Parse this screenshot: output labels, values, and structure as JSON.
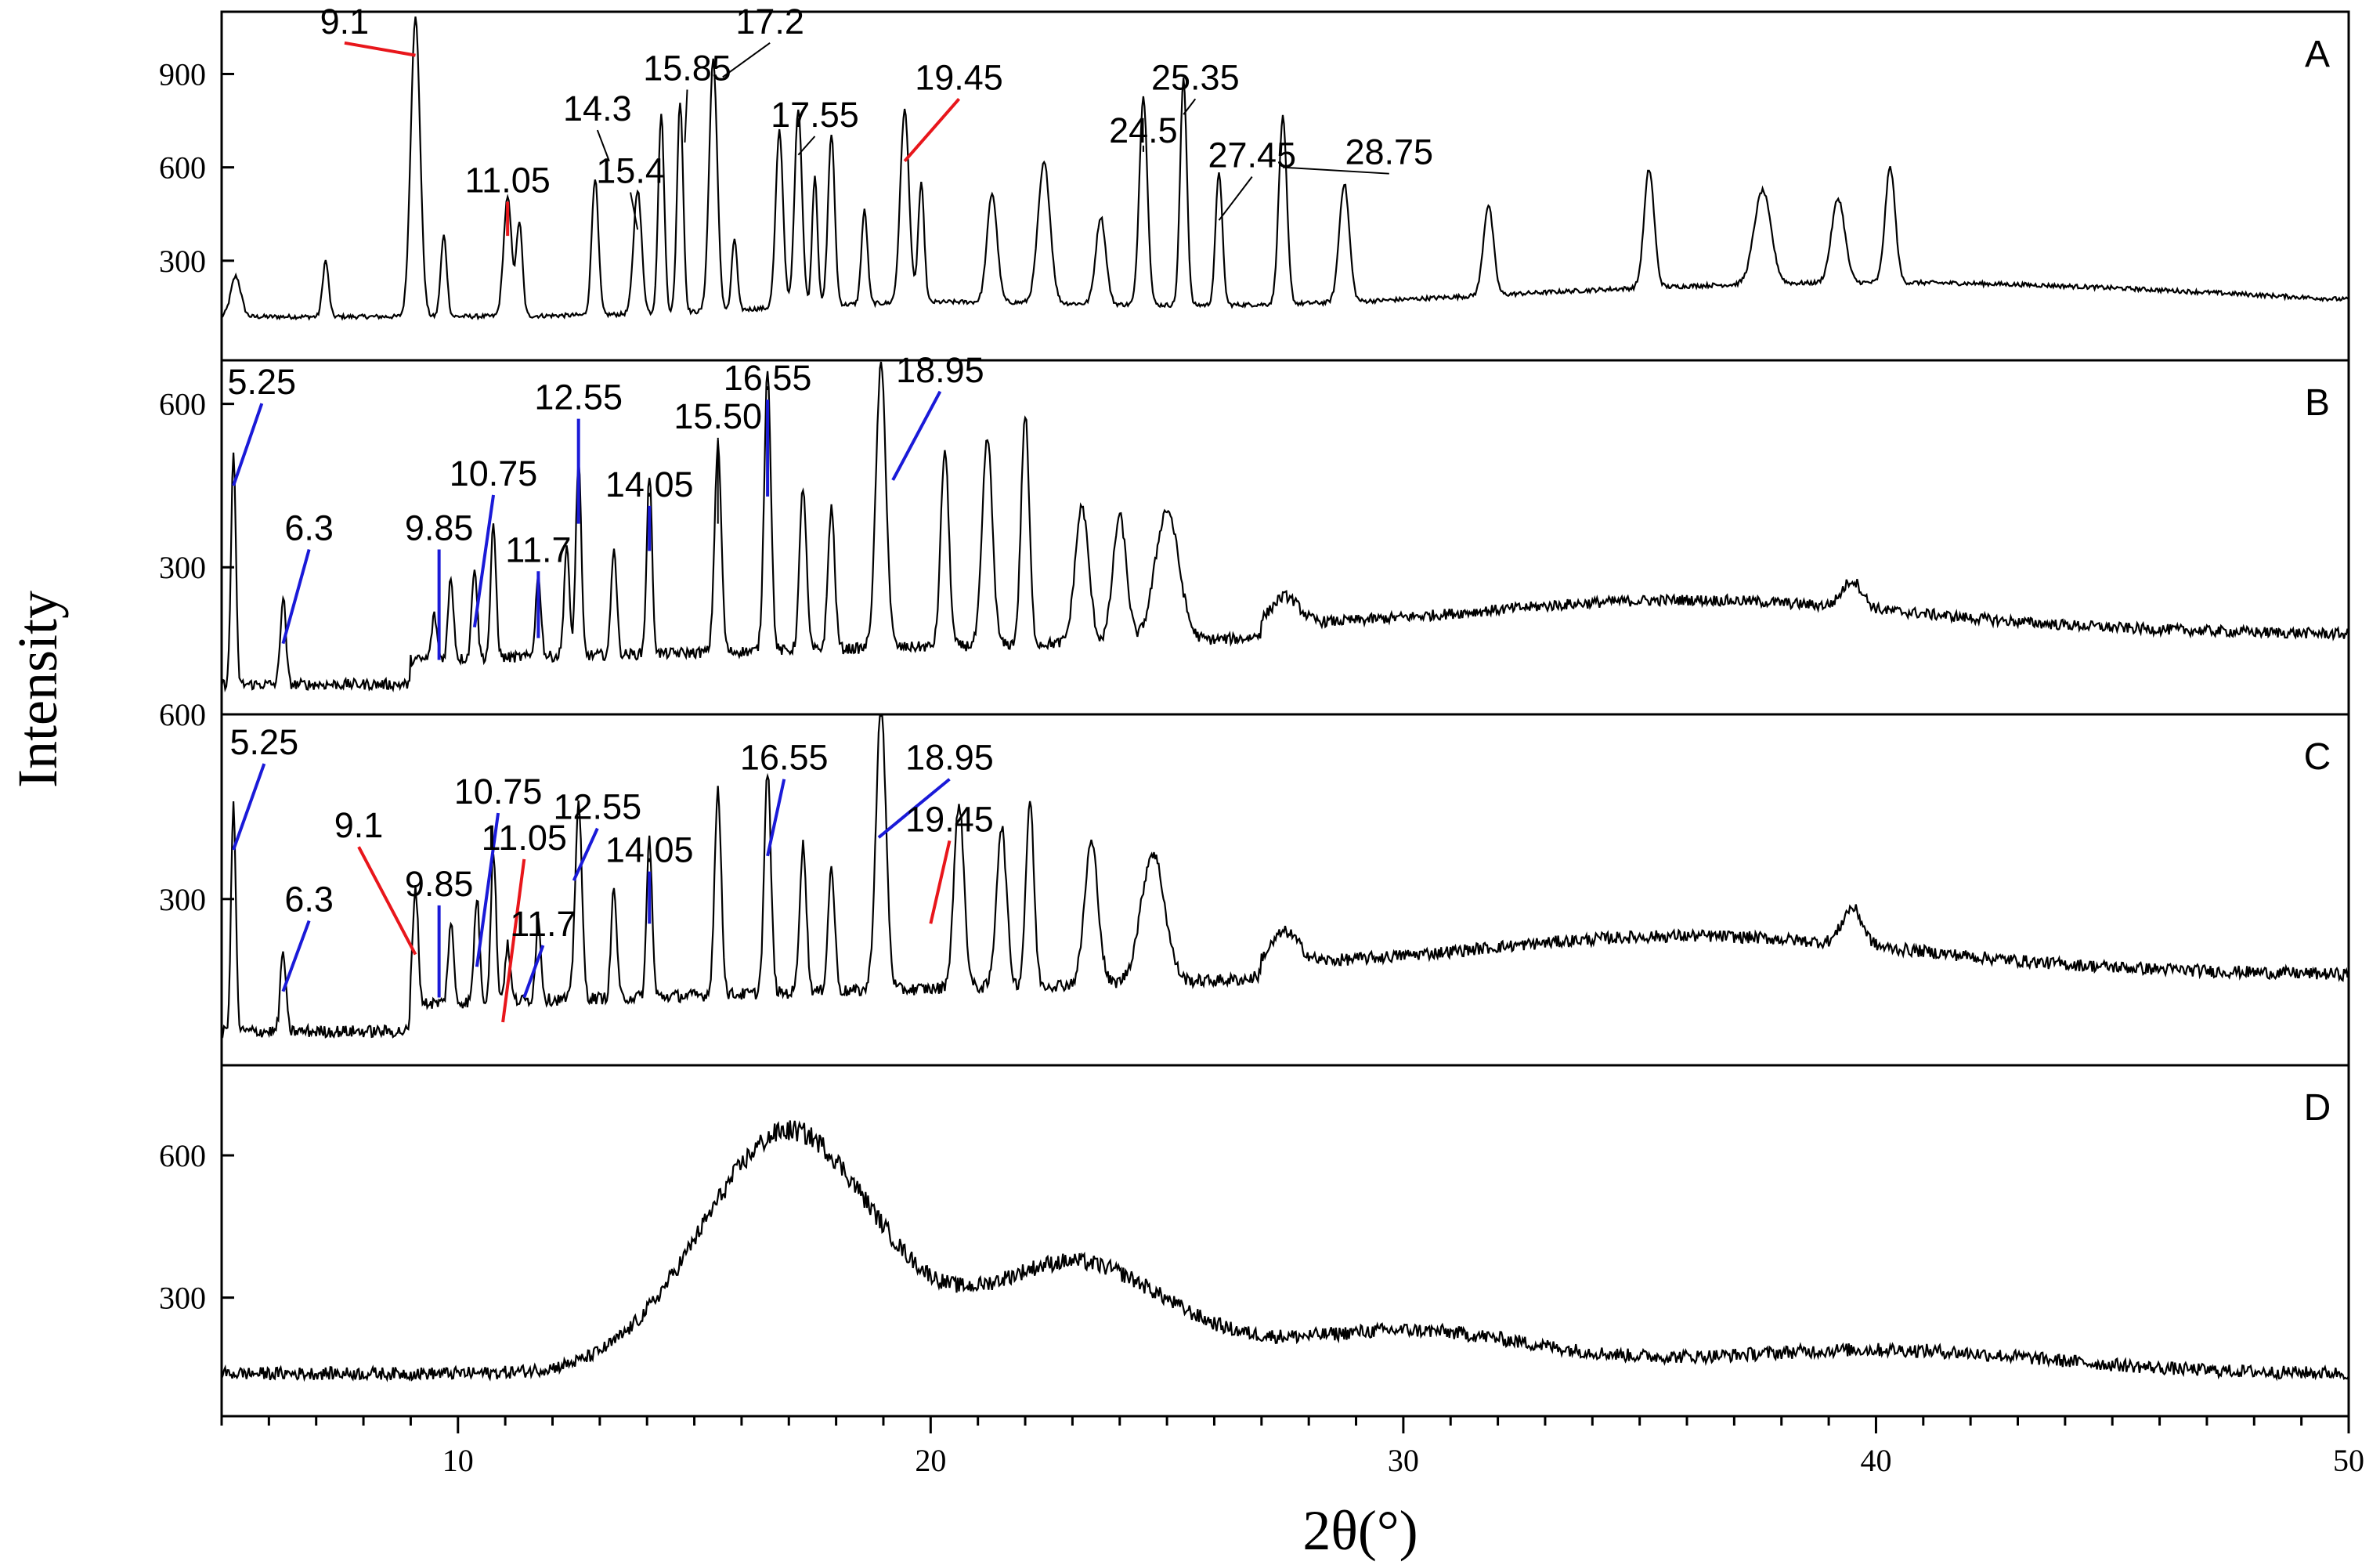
{
  "chart_data": {
    "type": "line",
    "xlabel": "2θ(°)",
    "ylabel": "Intensity",
    "xlim": [
      5,
      50
    ],
    "x_ticks": [
      10,
      20,
      30,
      40,
      50
    ],
    "grid": false,
    "colors": {
      "trace": "#000000",
      "red_marker": "#e8161b",
      "blue_marker": "#1a1ad8"
    },
    "panels": [
      {
        "id": "A",
        "letter": "A",
        "ylim": [
          -20,
          1100
        ],
        "y_ticks": [
          300,
          600,
          900
        ],
        "peaks": [
          {
            "x": 5.3,
            "y": 130,
            "w": 0.15
          },
          {
            "x": 7.2,
            "y": 180,
            "w": 0.09
          },
          {
            "x": 9.1,
            "y": 960,
            "w": 0.14
          },
          {
            "x": 9.7,
            "y": 260,
            "w": 0.09
          },
          {
            "x": 11.05,
            "y": 380,
            "w": 0.12
          },
          {
            "x": 11.3,
            "y": 300,
            "w": 0.09
          },
          {
            "x": 12.9,
            "y": 440,
            "w": 0.1
          },
          {
            "x": 13.8,
            "y": 400,
            "w": 0.12
          },
          {
            "x": 14.3,
            "y": 640,
            "w": 0.09
          },
          {
            "x": 14.7,
            "y": 680,
            "w": 0.09
          },
          {
            "x": 15.4,
            "y": 810,
            "w": 0.12
          },
          {
            "x": 15.85,
            "y": 230,
            "w": 0.08
          },
          {
            "x": 16.8,
            "y": 570,
            "w": 0.11
          },
          {
            "x": 17.2,
            "y": 640,
            "w": 0.11
          },
          {
            "x": 17.55,
            "y": 420,
            "w": 0.08
          },
          {
            "x": 17.9,
            "y": 550,
            "w": 0.1
          },
          {
            "x": 18.6,
            "y": 300,
            "w": 0.09
          },
          {
            "x": 19.45,
            "y": 620,
            "w": 0.13
          },
          {
            "x": 19.8,
            "y": 380,
            "w": 0.09
          },
          {
            "x": 21.3,
            "y": 350,
            "w": 0.15
          },
          {
            "x": 22.4,
            "y": 450,
            "w": 0.18
          },
          {
            "x": 23.6,
            "y": 280,
            "w": 0.15
          },
          {
            "x": 24.5,
            "y": 670,
            "w": 0.12
          },
          {
            "x": 25.35,
            "y": 730,
            "w": 0.1
          },
          {
            "x": 26.1,
            "y": 430,
            "w": 0.1
          },
          {
            "x": 27.45,
            "y": 600,
            "w": 0.12
          },
          {
            "x": 28.75,
            "y": 380,
            "w": 0.15
          },
          {
            "x": 31.8,
            "y": 290,
            "w": 0.15
          },
          {
            "x": 35.2,
            "y": 380,
            "w": 0.15
          },
          {
            "x": 37.6,
            "y": 300,
            "w": 0.25
          },
          {
            "x": 39.2,
            "y": 270,
            "w": 0.2
          },
          {
            "x": 40.3,
            "y": 370,
            "w": 0.15
          }
        ],
        "labels": [
          {
            "text": "9.1",
            "x": 9.1,
            "y": 960,
            "lx": 7.6,
            "ly": 1030,
            "color": "red"
          },
          {
            "text": "11.05",
            "x": 11.05,
            "y": 380,
            "lx": 11.05,
            "ly": 520,
            "color": "red"
          },
          {
            "text": "14.3",
            "x": 13.2,
            "y": 620,
            "lx": 12.95,
            "ly": 750,
            "color": "black"
          },
          {
            "text": "15.4",
            "x": 13.8,
            "y": 400,
            "lx": 13.65,
            "ly": 550,
            "color": "black"
          },
          {
            "text": "15.85",
            "x": 14.8,
            "y": 680,
            "lx": 14.85,
            "ly": 880,
            "color": "black"
          },
          {
            "text": "17.2",
            "x": 15.6,
            "y": 890,
            "lx": 16.6,
            "ly": 1030,
            "color": "black"
          },
          {
            "text": "17.55",
            "x": 17.2,
            "y": 640,
            "lx": 17.55,
            "ly": 730,
            "color": "black"
          },
          {
            "text": "19.45",
            "x": 19.45,
            "y": 620,
            "lx": 20.6,
            "ly": 850,
            "color": "red"
          },
          {
            "text": "24.5",
            "x": 24.5,
            "y": 670,
            "lx": 24.5,
            "ly": 680,
            "color": "black"
          },
          {
            "text": "25.35",
            "x": 25.35,
            "y": 770,
            "lx": 25.6,
            "ly": 850,
            "color": "black"
          },
          {
            "text": "27.45",
            "x": 26.1,
            "y": 430,
            "lx": 26.8,
            "ly": 600,
            "color": "black"
          },
          {
            "text": "28.75",
            "x": 27.45,
            "y": 600,
            "lx": 29.7,
            "ly": 610,
            "color": "black"
          }
        ]
      },
      {
        "id": "B",
        "letter": "B",
        "ylim": [
          30,
          680
        ],
        "y_ticks": [
          300,
          600
        ],
        "peaks": [
          {
            "x": 5.25,
            "y": 430,
            "w": 0.07
          },
          {
            "x": 6.3,
            "y": 160,
            "w": 0.08
          },
          {
            "x": 9.5,
            "y": 80,
            "w": 0.08
          },
          {
            "x": 9.85,
            "y": 150,
            "w": 0.08
          },
          {
            "x": 10.35,
            "y": 170,
            "w": 0.08
          },
          {
            "x": 10.75,
            "y": 240,
            "w": 0.08
          },
          {
            "x": 11.7,
            "y": 150,
            "w": 0.08
          },
          {
            "x": 12.3,
            "y": 200,
            "w": 0.08
          },
          {
            "x": 12.55,
            "y": 360,
            "w": 0.08
          },
          {
            "x": 13.3,
            "y": 200,
            "w": 0.08
          },
          {
            "x": 14.05,
            "y": 330,
            "w": 0.08
          },
          {
            "x": 15.5,
            "y": 380,
            "w": 0.1
          },
          {
            "x": 16.55,
            "y": 520,
            "w": 0.1
          },
          {
            "x": 17.3,
            "y": 300,
            "w": 0.1
          },
          {
            "x": 17.9,
            "y": 260,
            "w": 0.1
          },
          {
            "x": 18.95,
            "y": 520,
            "w": 0.15
          },
          {
            "x": 20.3,
            "y": 360,
            "w": 0.12
          },
          {
            "x": 21.2,
            "y": 380,
            "w": 0.15
          },
          {
            "x": 22.0,
            "y": 420,
            "w": 0.12
          },
          {
            "x": 23.2,
            "y": 250,
            "w": 0.2
          },
          {
            "x": 24.0,
            "y": 230,
            "w": 0.2
          },
          {
            "x": 25.0,
            "y": 240,
            "w": 0.35
          },
          {
            "x": 27.5,
            "y": 50,
            "w": 0.4
          },
          {
            "x": 39.5,
            "y": 50,
            "w": 0.3
          }
        ],
        "labels": [
          {
            "text": "5.25",
            "x": 5.25,
            "y": 450,
            "lx": 5.85,
            "ly": 618,
            "color": "blue"
          },
          {
            "text": "6.3",
            "x": 6.3,
            "y": 160,
            "lx": 6.85,
            "ly": 350,
            "color": "blue"
          },
          {
            "text": "9.85",
            "x": 9.6,
            "y": 130,
            "lx": 9.6,
            "ly": 350,
            "color": "blue"
          },
          {
            "text": "10.75",
            "x": 10.35,
            "y": 190,
            "lx": 10.75,
            "ly": 450,
            "color": "blue"
          },
          {
            "text": "11.7",
            "x": 11.7,
            "y": 170,
            "lx": 11.7,
            "ly": 310,
            "color": "blue"
          },
          {
            "text": "12.55",
            "x": 12.55,
            "y": 380,
            "lx": 12.55,
            "ly": 590,
            "color": "blue"
          },
          {
            "text": "14.05",
            "x": 14.05,
            "y": 330,
            "lx": 14.05,
            "ly": 430,
            "color": "blue"
          },
          {
            "text": "15.50",
            "x": 15.5,
            "y": 380,
            "lx": 15.5,
            "ly": 555,
            "color": "black"
          },
          {
            "text": "16.55",
            "x": 16.55,
            "y": 430,
            "lx": 16.55,
            "ly": 625,
            "color": "blue"
          },
          {
            "text": "18.95",
            "x": 19.2,
            "y": 460,
            "lx": 20.2,
            "ly": 640,
            "color": "blue"
          }
        ]
      },
      {
        "id": "C",
        "letter": "C",
        "ylim": [
          30,
          600
        ],
        "y_ticks": [
          300,
          600
        ],
        "peaks": [
          {
            "x": 5.25,
            "y": 370,
            "w": 0.07
          },
          {
            "x": 6.3,
            "y": 130,
            "w": 0.08
          },
          {
            "x": 9.1,
            "y": 190,
            "w": 0.08
          },
          {
            "x": 9.85,
            "y": 130,
            "w": 0.08
          },
          {
            "x": 10.4,
            "y": 170,
            "w": 0.08
          },
          {
            "x": 10.75,
            "y": 240,
            "w": 0.08
          },
          {
            "x": 11.05,
            "y": 90,
            "w": 0.08
          },
          {
            "x": 11.7,
            "y": 130,
            "w": 0.08
          },
          {
            "x": 12.55,
            "y": 320,
            "w": 0.1
          },
          {
            "x": 13.3,
            "y": 180,
            "w": 0.08
          },
          {
            "x": 14.05,
            "y": 260,
            "w": 0.08
          },
          {
            "x": 15.5,
            "y": 330,
            "w": 0.1
          },
          {
            "x": 16.55,
            "y": 360,
            "w": 0.1
          },
          {
            "x": 17.3,
            "y": 240,
            "w": 0.1
          },
          {
            "x": 17.9,
            "y": 200,
            "w": 0.1
          },
          {
            "x": 18.95,
            "y": 460,
            "w": 0.15
          },
          {
            "x": 20.6,
            "y": 300,
            "w": 0.15
          },
          {
            "x": 21.5,
            "y": 260,
            "w": 0.15
          },
          {
            "x": 22.1,
            "y": 300,
            "w": 0.12
          },
          {
            "x": 23.4,
            "y": 230,
            "w": 0.2
          },
          {
            "x": 24.7,
            "y": 210,
            "w": 0.35
          },
          {
            "x": 27.5,
            "y": 50,
            "w": 0.4
          },
          {
            "x": 39.5,
            "y": 60,
            "w": 0.3
          }
        ],
        "labels": [
          {
            "text": "5.25",
            "x": 5.25,
            "y": 380,
            "lx": 5.9,
            "ly": 535,
            "color": "blue"
          },
          {
            "text": "6.3",
            "x": 6.3,
            "y": 150,
            "lx": 6.85,
            "ly": 280,
            "color": "blue"
          },
          {
            "text": "9.1",
            "x": 9.1,
            "y": 210,
            "lx": 7.9,
            "ly": 400,
            "color": "red"
          },
          {
            "text": "9.85",
            "x": 9.6,
            "y": 140,
            "lx": 9.6,
            "ly": 305,
            "color": "blue"
          },
          {
            "text": "10.75",
            "x": 10.4,
            "y": 190,
            "lx": 10.85,
            "ly": 455,
            "color": "blue"
          },
          {
            "text": "11.05",
            "x": 10.95,
            "y": 100,
            "lx": 11.4,
            "ly": 380,
            "color": "red"
          },
          {
            "text": "11.7",
            "x": 11.4,
            "y": 140,
            "lx": 11.8,
            "ly": 240,
            "color": "blue"
          },
          {
            "text": "12.55",
            "x": 12.45,
            "y": 330,
            "lx": 12.95,
            "ly": 430,
            "color": "blue"
          },
          {
            "text": "14.05",
            "x": 14.05,
            "y": 260,
            "lx": 14.05,
            "ly": 360,
            "color": "blue"
          },
          {
            "text": "16.55",
            "x": 16.55,
            "y": 370,
            "lx": 16.9,
            "ly": 510,
            "color": "blue"
          },
          {
            "text": "18.95",
            "x": 18.9,
            "y": 400,
            "lx": 20.4,
            "ly": 510,
            "color": "blue"
          },
          {
            "text": "19.45",
            "x": 20.0,
            "y": 260,
            "lx": 20.4,
            "ly": 410,
            "color": "red"
          }
        ]
      },
      {
        "id": "D",
        "letter": "D",
        "ylim": [
          50,
          790
        ],
        "y_ticks": [
          300,
          600
        ],
        "humps": [
          {
            "x": 17.0,
            "y": 510,
            "w": 2.6
          },
          {
            "x": 23.0,
            "y": 230,
            "w": 2.8
          },
          {
            "x": 30.0,
            "y": 90,
            "w": 4.0
          },
          {
            "x": 40.0,
            "y": 50,
            "w": 5.0
          }
        ],
        "base": 140,
        "labels": []
      }
    ]
  }
}
